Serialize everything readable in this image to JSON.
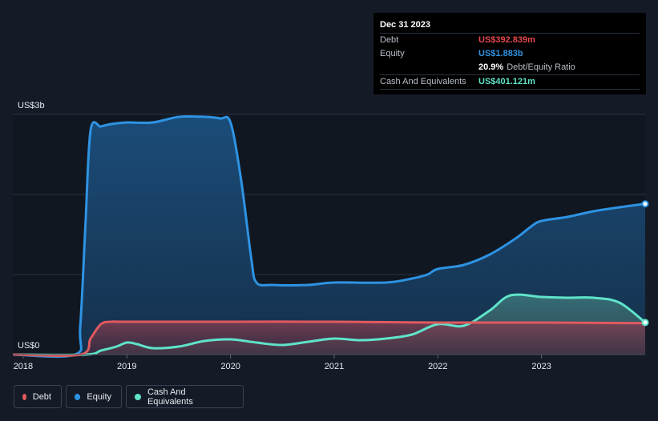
{
  "tooltip": {
    "date": "Dec 31 2023",
    "rows": [
      {
        "label": "Debt",
        "value": "US$392.839m",
        "color": "#e5484d"
      },
      {
        "label": "Equity",
        "value": "US$1.883b",
        "color": "#2e93e3"
      },
      {
        "label": "",
        "value": "20.9%",
        "suffix": "Debt/Equity Ratio",
        "color": "#ffffff"
      },
      {
        "label": "Cash And Equivalents",
        "value": "US$401.121m",
        "color": "#5fe3c9"
      }
    ]
  },
  "legend": [
    {
      "label": "Debt",
      "color": "#e05a5f"
    },
    {
      "label": "Equity",
      "color": "#2e93e3"
    },
    {
      "label": "Cash And Equivalents",
      "color": "#5fe3c9"
    }
  ],
  "chart_data": {
    "type": "area",
    "y_unit": "US$ billions",
    "y_labels": {
      "top": "US$3b",
      "bottom": "US$0"
    },
    "ylim": [
      0,
      3
    ],
    "xlim": [
      2017.9,
      2024.0
    ],
    "x_ticks": [
      2018,
      2019,
      2020,
      2021,
      2022,
      2023
    ],
    "x_tick_labels": [
      "2018",
      "2019",
      "2020",
      "2021",
      "2022",
      "2023"
    ],
    "gridlines_y": [
      1,
      2,
      3
    ],
    "series": [
      {
        "name": "Equity",
        "color": "#2e93e3",
        "points": [
          [
            2017.9,
            0
          ],
          [
            2018.5,
            0
          ],
          [
            2018.55,
            0.35
          ],
          [
            2018.6,
            1.6
          ],
          [
            2018.65,
            2.8
          ],
          [
            2018.75,
            2.85
          ],
          [
            2018.85,
            2.88
          ],
          [
            2019.0,
            2.9
          ],
          [
            2019.25,
            2.9
          ],
          [
            2019.5,
            2.97
          ],
          [
            2019.75,
            2.97
          ],
          [
            2019.9,
            2.95
          ],
          [
            2020.0,
            2.9
          ],
          [
            2020.1,
            2.2
          ],
          [
            2020.2,
            1.2
          ],
          [
            2020.25,
            0.9
          ],
          [
            2020.4,
            0.87
          ],
          [
            2020.75,
            0.87
          ],
          [
            2021.0,
            0.9
          ],
          [
            2021.5,
            0.9
          ],
          [
            2021.75,
            0.95
          ],
          [
            2021.9,
            1.0
          ],
          [
            2022.0,
            1.07
          ],
          [
            2022.25,
            1.12
          ],
          [
            2022.5,
            1.25
          ],
          [
            2022.75,
            1.45
          ],
          [
            2022.9,
            1.6
          ],
          [
            2023.0,
            1.67
          ],
          [
            2023.25,
            1.72
          ],
          [
            2023.5,
            1.79
          ],
          [
            2023.75,
            1.84
          ],
          [
            2024.0,
            1.883
          ]
        ]
      },
      {
        "name": "Cash And Equivalents",
        "color": "#5fe3c9",
        "points": [
          [
            2017.9,
            0
          ],
          [
            2018.6,
            0
          ],
          [
            2018.75,
            0.05
          ],
          [
            2018.9,
            0.1
          ],
          [
            2019.0,
            0.15
          ],
          [
            2019.1,
            0.13
          ],
          [
            2019.25,
            0.08
          ],
          [
            2019.5,
            0.1
          ],
          [
            2019.75,
            0.17
          ],
          [
            2020.0,
            0.19
          ],
          [
            2020.25,
            0.15
          ],
          [
            2020.5,
            0.12
          ],
          [
            2020.75,
            0.16
          ],
          [
            2021.0,
            0.2
          ],
          [
            2021.25,
            0.18
          ],
          [
            2021.5,
            0.2
          ],
          [
            2021.75,
            0.25
          ],
          [
            2022.0,
            0.38
          ],
          [
            2022.25,
            0.36
          ],
          [
            2022.5,
            0.55
          ],
          [
            2022.7,
            0.74
          ],
          [
            2023.0,
            0.72
          ],
          [
            2023.25,
            0.71
          ],
          [
            2023.5,
            0.71
          ],
          [
            2023.75,
            0.65
          ],
          [
            2024.0,
            0.401
          ]
        ]
      },
      {
        "name": "Debt",
        "color": "#e05a5f",
        "points": [
          [
            2017.9,
            0
          ],
          [
            2018.55,
            0
          ],
          [
            2018.65,
            0.2
          ],
          [
            2018.75,
            0.38
          ],
          [
            2018.85,
            0.41
          ],
          [
            2019.0,
            0.41
          ],
          [
            2020.0,
            0.41
          ],
          [
            2021.0,
            0.41
          ],
          [
            2022.0,
            0.4
          ],
          [
            2023.0,
            0.4
          ],
          [
            2024.0,
            0.393
          ]
        ]
      }
    ]
  }
}
